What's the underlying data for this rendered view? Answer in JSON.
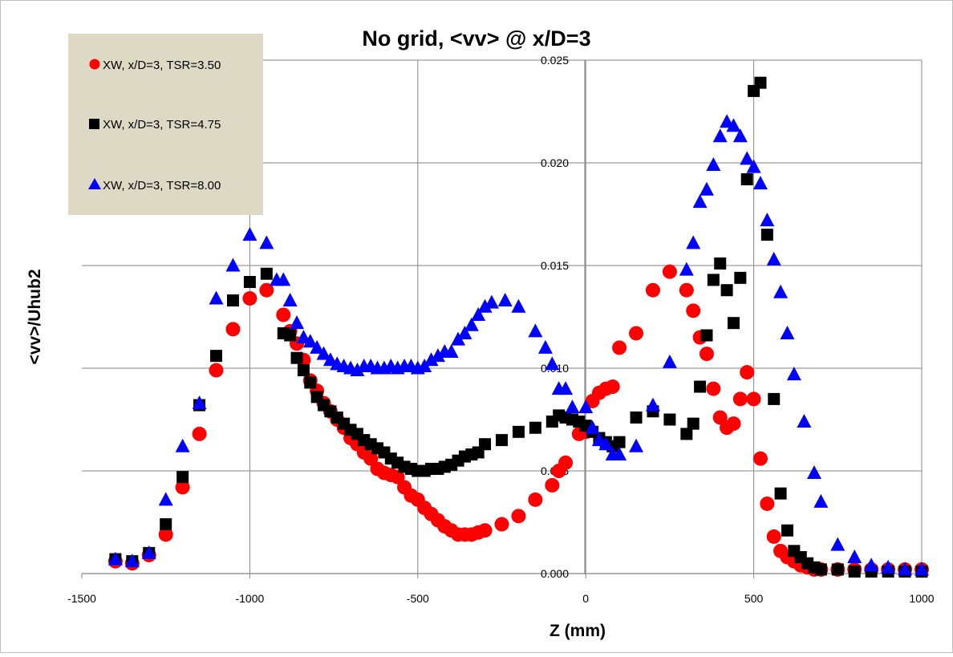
{
  "chart_data": {
    "type": "scatter",
    "title": "No grid, <vv> @ x/D=3",
    "xlabel": "Z (mm)",
    "ylabel": "<vv>/Uhub2",
    "xlim": [
      -1500,
      1000
    ],
    "ylim": [
      0.0,
      0.025
    ],
    "xticks": [
      -1500,
      -1000,
      -500,
      0,
      500,
      1000
    ],
    "xtick_labels": [
      "-1500",
      "-1000",
      "-500",
      "0",
      "500",
      "1000"
    ],
    "yticks": [
      0.0,
      0.005,
      0.01,
      0.015,
      0.02,
      0.025
    ],
    "ytick_labels": [
      "0.000",
      "0.005",
      "0.010",
      "0.015",
      "0.020",
      "0.025"
    ],
    "grid": true,
    "legend_position": "top-left",
    "plot_background": "#ffffff",
    "legend_background": "#ddd9c4",
    "series": [
      {
        "name": "XW, x/D=3, TSR=3.50",
        "marker": "circle",
        "color": "#ff0000",
        "points": [
          [
            -1400,
            0.0006
          ],
          [
            -1350,
            0.0005
          ],
          [
            -1300,
            0.0009
          ],
          [
            -1250,
            0.0019
          ],
          [
            -1200,
            0.0042
          ],
          [
            -1150,
            0.0068
          ],
          [
            -1100,
            0.0099
          ],
          [
            -1050,
            0.0119
          ],
          [
            -1000,
            0.0134
          ],
          [
            -950,
            0.0138
          ],
          [
            -900,
            0.0126
          ],
          [
            -880,
            0.0118
          ],
          [
            -860,
            0.0112
          ],
          [
            -840,
            0.0104
          ],
          [
            -820,
            0.0094
          ],
          [
            -800,
            0.0089
          ],
          [
            -780,
            0.0083
          ],
          [
            -760,
            0.0079
          ],
          [
            -740,
            0.0075
          ],
          [
            -720,
            0.0071
          ],
          [
            -700,
            0.0066
          ],
          [
            -680,
            0.0063
          ],
          [
            -660,
            0.0059
          ],
          [
            -640,
            0.0056
          ],
          [
            -620,
            0.0051
          ],
          [
            -600,
            0.0049
          ],
          [
            -580,
            0.0048
          ],
          [
            -560,
            0.0047
          ],
          [
            -540,
            0.0042
          ],
          [
            -520,
            0.0038
          ],
          [
            -500,
            0.0036
          ],
          [
            -480,
            0.0032
          ],
          [
            -460,
            0.0029
          ],
          [
            -440,
            0.0026
          ],
          [
            -420,
            0.0023
          ],
          [
            -400,
            0.0021
          ],
          [
            -380,
            0.0019
          ],
          [
            -360,
            0.0019
          ],
          [
            -340,
            0.0019
          ],
          [
            -320,
            0.002
          ],
          [
            -300,
            0.0021
          ],
          [
            -250,
            0.0024
          ],
          [
            -200,
            0.0028
          ],
          [
            -150,
            0.0036
          ],
          [
            -100,
            0.0043
          ],
          [
            -80,
            0.005
          ],
          [
            -60,
            0.0054
          ],
          [
            -20,
            0.0068
          ],
          [
            0,
            0.0069
          ],
          [
            20,
            0.0084
          ],
          [
            40,
            0.0088
          ],
          [
            60,
            0.009
          ],
          [
            80,
            0.0091
          ],
          [
            100,
            0.011
          ],
          [
            150,
            0.0117
          ],
          [
            200,
            0.0138
          ],
          [
            250,
            0.0147
          ],
          [
            300,
            0.0138
          ],
          [
            320,
            0.0128
          ],
          [
            340,
            0.0115
          ],
          [
            360,
            0.0107
          ],
          [
            380,
            0.009
          ],
          [
            400,
            0.0076
          ],
          [
            420,
            0.0071
          ],
          [
            440,
            0.0073
          ],
          [
            460,
            0.0085
          ],
          [
            480,
            0.0098
          ],
          [
            500,
            0.0085
          ],
          [
            520,
            0.0056
          ],
          [
            540,
            0.0034
          ],
          [
            560,
            0.0018
          ],
          [
            580,
            0.0011
          ],
          [
            600,
            0.0008
          ],
          [
            620,
            0.0006
          ],
          [
            640,
            0.0004
          ],
          [
            660,
            0.0003
          ],
          [
            680,
            0.0002
          ],
          [
            700,
            0.0002
          ],
          [
            750,
            0.0002
          ],
          [
            800,
            0.0002
          ],
          [
            850,
            0.0002
          ],
          [
            900,
            0.0002
          ],
          [
            950,
            0.0002
          ],
          [
            1000,
            0.0002
          ]
        ]
      },
      {
        "name": "XW, x/D=3, TSR=4.75",
        "marker": "square",
        "color": "#000000",
        "points": [
          [
            -1400,
            0.0007
          ],
          [
            -1350,
            0.0006
          ],
          [
            -1300,
            0.001
          ],
          [
            -1250,
            0.0024
          ],
          [
            -1200,
            0.0047
          ],
          [
            -1150,
            0.0082
          ],
          [
            -1100,
            0.0106
          ],
          [
            -1050,
            0.0133
          ],
          [
            -1000,
            0.0142
          ],
          [
            -950,
            0.0146
          ],
          [
            -900,
            0.0117
          ],
          [
            -880,
            0.0116
          ],
          [
            -860,
            0.0105
          ],
          [
            -840,
            0.0099
          ],
          [
            -820,
            0.0093
          ],
          [
            -800,
            0.0086
          ],
          [
            -780,
            0.0082
          ],
          [
            -760,
            0.0079
          ],
          [
            -740,
            0.0076
          ],
          [
            -720,
            0.0073
          ],
          [
            -700,
            0.007
          ],
          [
            -680,
            0.0068
          ],
          [
            -660,
            0.0065
          ],
          [
            -640,
            0.0063
          ],
          [
            -620,
            0.0061
          ],
          [
            -600,
            0.0059
          ],
          [
            -580,
            0.0056
          ],
          [
            -560,
            0.0054
          ],
          [
            -540,
            0.0052
          ],
          [
            -520,
            0.0051
          ],
          [
            -500,
            0.005
          ],
          [
            -480,
            0.005
          ],
          [
            -460,
            0.0051
          ],
          [
            -440,
            0.0051
          ],
          [
            -420,
            0.0052
          ],
          [
            -400,
            0.0053
          ],
          [
            -380,
            0.0055
          ],
          [
            -360,
            0.0057
          ],
          [
            -340,
            0.0058
          ],
          [
            -320,
            0.0059
          ],
          [
            -300,
            0.0063
          ],
          [
            -250,
            0.0065
          ],
          [
            -200,
            0.0069
          ],
          [
            -150,
            0.0071
          ],
          [
            -100,
            0.0074
          ],
          [
            -80,
            0.0077
          ],
          [
            -60,
            0.0076
          ],
          [
            -40,
            0.0075
          ],
          [
            -20,
            0.0074
          ],
          [
            0,
            0.0072
          ],
          [
            20,
            0.0069
          ],
          [
            40,
            0.0066
          ],
          [
            60,
            0.0064
          ],
          [
            80,
            0.0062
          ],
          [
            100,
            0.0064
          ],
          [
            150,
            0.0076
          ],
          [
            200,
            0.0079
          ],
          [
            250,
            0.0075
          ],
          [
            300,
            0.0068
          ],
          [
            320,
            0.0073
          ],
          [
            340,
            0.0091
          ],
          [
            360,
            0.0116
          ],
          [
            380,
            0.0143
          ],
          [
            400,
            0.0151
          ],
          [
            420,
            0.0138
          ],
          [
            440,
            0.0122
          ],
          [
            460,
            0.0144
          ],
          [
            480,
            0.0192
          ],
          [
            500,
            0.0235
          ],
          [
            520,
            0.0239
          ],
          [
            540,
            0.0165
          ],
          [
            560,
            0.0085
          ],
          [
            580,
            0.0039
          ],
          [
            600,
            0.0021
          ],
          [
            620,
            0.0011
          ],
          [
            640,
            0.0008
          ],
          [
            660,
            0.0005
          ],
          [
            680,
            0.0003
          ],
          [
            700,
            0.0002
          ],
          [
            750,
            0.0002
          ],
          [
            800,
            0.0001
          ],
          [
            850,
            0.0001
          ],
          [
            900,
            0.0001
          ],
          [
            950,
            0.0001
          ],
          [
            1000,
            0.0001
          ]
        ]
      },
      {
        "name": "XW, x/D=3, TSR=8.00",
        "marker": "triangle",
        "color": "#0000ff",
        "points": [
          [
            -1400,
            0.0007
          ],
          [
            -1350,
            0.0006
          ],
          [
            -1300,
            0.001
          ],
          [
            -1250,
            0.0036
          ],
          [
            -1200,
            0.0062
          ],
          [
            -1150,
            0.0083
          ],
          [
            -1100,
            0.0134
          ],
          [
            -1050,
            0.015
          ],
          [
            -1000,
            0.0165
          ],
          [
            -950,
            0.0161
          ],
          [
            -920,
            0.0143
          ],
          [
            -900,
            0.0143
          ],
          [
            -880,
            0.0133
          ],
          [
            -860,
            0.0122
          ],
          [
            -840,
            0.0115
          ],
          [
            -820,
            0.0113
          ],
          [
            -800,
            0.011
          ],
          [
            -780,
            0.0107
          ],
          [
            -760,
            0.0104
          ],
          [
            -740,
            0.0102
          ],
          [
            -720,
            0.0101
          ],
          [
            -700,
            0.01
          ],
          [
            -680,
            0.0099
          ],
          [
            -660,
            0.0101
          ],
          [
            -640,
            0.0101
          ],
          [
            -620,
            0.01
          ],
          [
            -600,
            0.01
          ],
          [
            -580,
            0.0101
          ],
          [
            -560,
            0.01
          ],
          [
            -540,
            0.0101
          ],
          [
            -520,
            0.0101
          ],
          [
            -500,
            0.01
          ],
          [
            -480,
            0.0101
          ],
          [
            -460,
            0.0104
          ],
          [
            -440,
            0.0106
          ],
          [
            -420,
            0.0108
          ],
          [
            -400,
            0.0108
          ],
          [
            -380,
            0.0114
          ],
          [
            -360,
            0.0117
          ],
          [
            -340,
            0.0121
          ],
          [
            -320,
            0.0126
          ],
          [
            -300,
            0.013
          ],
          [
            -280,
            0.0132
          ],
          [
            -240,
            0.0133
          ],
          [
            -200,
            0.013
          ],
          [
            -150,
            0.0118
          ],
          [
            -120,
            0.011
          ],
          [
            -100,
            0.0102
          ],
          [
            -80,
            0.009
          ],
          [
            -60,
            0.009
          ],
          [
            -40,
            0.0081
          ],
          [
            0,
            0.0081
          ],
          [
            20,
            0.0071
          ],
          [
            40,
            0.0065
          ],
          [
            60,
            0.0063
          ],
          [
            80,
            0.0058
          ],
          [
            100,
            0.0058
          ],
          [
            150,
            0.0062
          ],
          [
            200,
            0.0082
          ],
          [
            250,
            0.0103
          ],
          [
            300,
            0.0148
          ],
          [
            320,
            0.0161
          ],
          [
            340,
            0.0181
          ],
          [
            360,
            0.0187
          ],
          [
            380,
            0.0199
          ],
          [
            400,
            0.0213
          ],
          [
            420,
            0.022
          ],
          [
            440,
            0.0218
          ],
          [
            460,
            0.0213
          ],
          [
            480,
            0.0202
          ],
          [
            500,
            0.0198
          ],
          [
            520,
            0.019
          ],
          [
            540,
            0.0172
          ],
          [
            560,
            0.0153
          ],
          [
            580,
            0.0137
          ],
          [
            600,
            0.0117
          ],
          [
            620,
            0.0097
          ],
          [
            650,
            0.0074
          ],
          [
            680,
            0.0049
          ],
          [
            700,
            0.0035
          ],
          [
            750,
            0.0014
          ],
          [
            800,
            0.0008
          ],
          [
            850,
            0.0004
          ],
          [
            900,
            0.0003
          ],
          [
            950,
            0.0002
          ],
          [
            1000,
            0.0002
          ]
        ]
      }
    ]
  }
}
